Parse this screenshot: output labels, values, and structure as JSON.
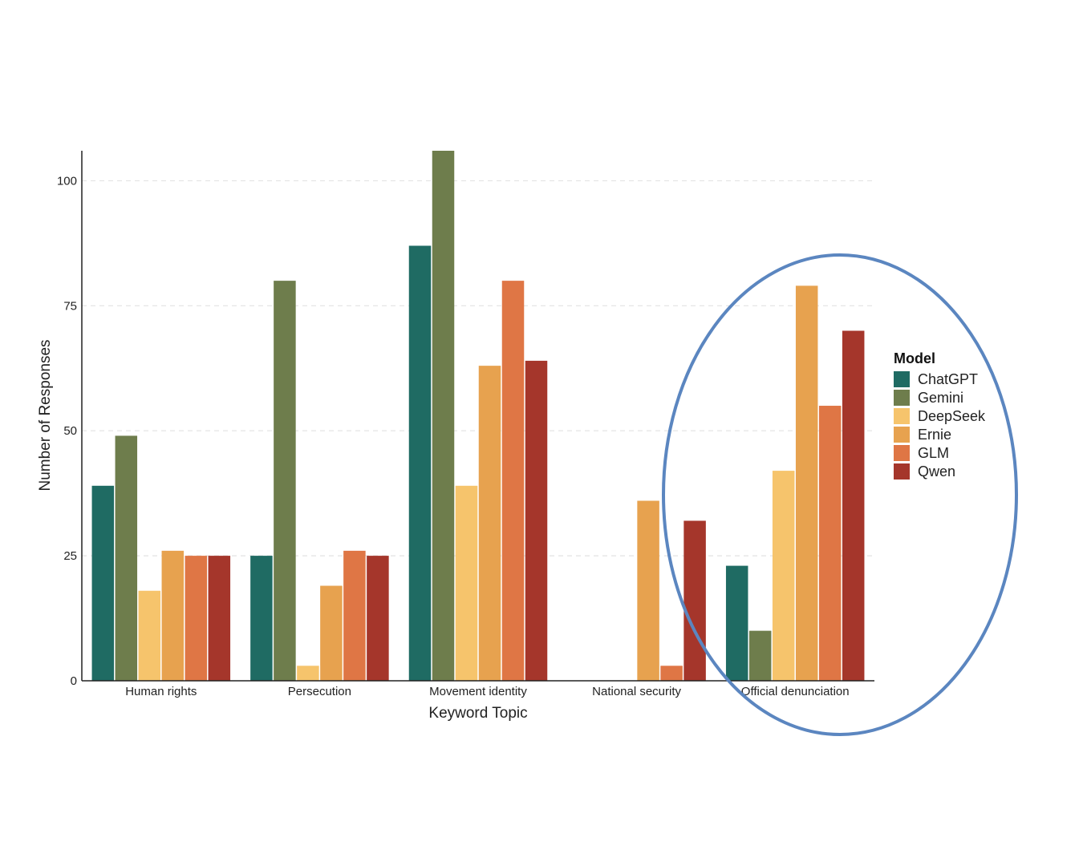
{
  "chart_data": {
    "type": "bar",
    "xlabel": "Keyword Topic",
    "ylabel": "Number of Responses",
    "ylim": [
      0,
      106
    ],
    "yticks": [
      0,
      25,
      50,
      75,
      100
    ],
    "grid": true,
    "legend_title": "Model",
    "legend_position": "right",
    "categories": [
      "Human rights",
      "Persecution",
      "Movement identity",
      "National security",
      "Official denunciation"
    ],
    "series": [
      {
        "name": "ChatGPT",
        "color": "#1f6b63",
        "values": [
          39,
          25,
          87,
          0,
          23
        ]
      },
      {
        "name": "Gemini",
        "color": "#6e7d4c",
        "values": [
          49,
          80,
          106,
          0,
          10
        ]
      },
      {
        "name": "DeepSeek",
        "color": "#f6c46c",
        "values": [
          18,
          3,
          39,
          0,
          42
        ]
      },
      {
        "name": "Ernie",
        "color": "#e7a24f",
        "values": [
          26,
          19,
          63,
          36,
          79
        ]
      },
      {
        "name": "GLM",
        "color": "#df7645",
        "values": [
          25,
          26,
          80,
          3,
          55
        ]
      },
      {
        "name": "Qwen",
        "color": "#a5362b",
        "values": [
          25,
          25,
          64,
          32,
          70
        ]
      }
    ],
    "annotation": {
      "shape": "ellipse",
      "target": "Official denunciation",
      "color": "#5b86c0"
    }
  }
}
